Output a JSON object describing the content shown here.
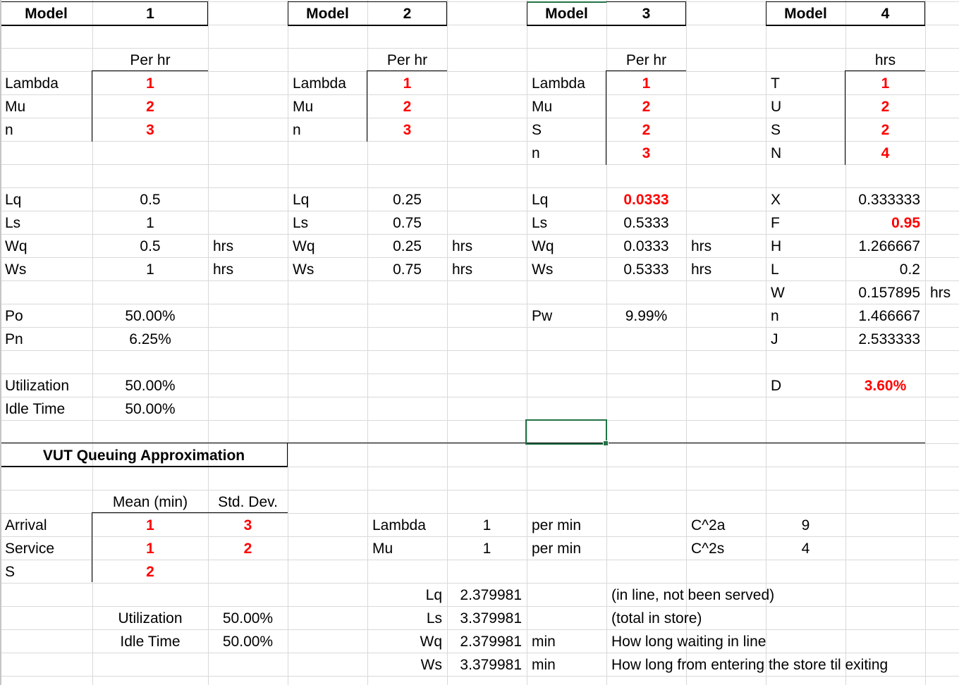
{
  "model1": {
    "header_label": "Model",
    "header_num": "1",
    "unit": "Per hr",
    "inputs": [
      {
        "label": "Lambda",
        "value": "1"
      },
      {
        "label": "Mu",
        "value": "2"
      },
      {
        "label": "n",
        "value": "3"
      }
    ],
    "outputs": [
      {
        "label": "Lq",
        "value": "0.5",
        "unit": ""
      },
      {
        "label": "Ls",
        "value": "1",
        "unit": ""
      },
      {
        "label": "Wq",
        "value": "0.5",
        "unit": "hrs"
      },
      {
        "label": "Ws",
        "value": "1",
        "unit": "hrs"
      }
    ],
    "probs": [
      {
        "label": "Po",
        "value": "50.00%"
      },
      {
        "label": "Pn",
        "value": "6.25%"
      }
    ],
    "util": [
      {
        "label": "Utilization",
        "value": "50.00%"
      },
      {
        "label": "Idle Time",
        "value": "50.00%"
      }
    ]
  },
  "model2": {
    "header_label": "Model",
    "header_num": "2",
    "unit": "Per hr",
    "inputs": [
      {
        "label": "Lambda",
        "value": "1"
      },
      {
        "label": "Mu",
        "value": "2"
      },
      {
        "label": "n",
        "value": "3"
      }
    ],
    "outputs": [
      {
        "label": "Lq",
        "value": "0.25",
        "unit": ""
      },
      {
        "label": "Ls",
        "value": "0.75",
        "unit": ""
      },
      {
        "label": "Wq",
        "value": "0.25",
        "unit": "hrs"
      },
      {
        "label": "Ws",
        "value": "0.75",
        "unit": "hrs"
      }
    ]
  },
  "model3": {
    "header_label": "Model",
    "header_num": "3",
    "unit": "Per hr",
    "inputs": [
      {
        "label": "Lambda",
        "value": "1"
      },
      {
        "label": "Mu",
        "value": "2"
      },
      {
        "label": "S",
        "value": "2"
      },
      {
        "label": "n",
        "value": "3"
      }
    ],
    "outputs": [
      {
        "label": "Lq",
        "value": "0.0333",
        "unit": ""
      },
      {
        "label": "Ls",
        "value": "0.5333",
        "unit": ""
      },
      {
        "label": "Wq",
        "value": "0.0333",
        "unit": "hrs"
      },
      {
        "label": "Ws",
        "value": "0.5333",
        "unit": "hrs"
      }
    ],
    "pw": {
      "label": "Pw",
      "value": "9.99%"
    }
  },
  "model4": {
    "header_label": "Model",
    "header_num": "4",
    "unit": "hrs",
    "inputs": [
      {
        "label": "T",
        "value": "1"
      },
      {
        "label": "U",
        "value": "2"
      },
      {
        "label": "S",
        "value": "2"
      },
      {
        "label": "N",
        "value": "4"
      }
    ],
    "outputs": [
      {
        "label": "X",
        "value": "0.333333",
        "unit": ""
      },
      {
        "label": "F",
        "value": "0.95",
        "unit": ""
      },
      {
        "label": "H",
        "value": "1.266667",
        "unit": ""
      },
      {
        "label": "L",
        "value": "0.2",
        "unit": ""
      },
      {
        "label": "W",
        "value": "0.157895",
        "unit": "hrs"
      },
      {
        "label": "n",
        "value": "1.466667",
        "unit": ""
      },
      {
        "label": "J",
        "value": "2.533333",
        "unit": ""
      }
    ],
    "d": {
      "label": "D",
      "value": "3.60%"
    }
  },
  "vut": {
    "title": "VUT Queuing Approximation",
    "col_mean": "Mean (min)",
    "col_std": "Std. Dev.",
    "rows": [
      {
        "label": "Arrival",
        "mean": "1",
        "std": "3"
      },
      {
        "label": "Service",
        "mean": "1",
        "std": "2"
      },
      {
        "label": "S",
        "mean": "2",
        "std": ""
      }
    ],
    "rates": [
      {
        "label": "Lambda",
        "value": "1",
        "unit": "per min"
      },
      {
        "label": "Mu",
        "value": "1",
        "unit": "per min"
      }
    ],
    "cv": [
      {
        "label": "C^2a",
        "value": "9"
      },
      {
        "label": "C^2s",
        "value": "4"
      }
    ],
    "util": [
      {
        "label": "Utilization",
        "value": "50.00%"
      },
      {
        "label": "Idle Time",
        "value": "50.00%"
      }
    ],
    "results": [
      {
        "label": "Lq",
        "value": "2.379981",
        "unit": "",
        "note": "(in line, not been served)"
      },
      {
        "label": "Ls",
        "value": "3.379981",
        "unit": "",
        "note": "(total in store)"
      },
      {
        "label": "Wq",
        "value": "2.379981",
        "unit": "min",
        "note": "How long waiting in line"
      },
      {
        "label": "Ws",
        "value": "3.379981",
        "unit": "min",
        "note": "How long from entering the store til exiting"
      }
    ]
  },
  "colors": {
    "input_red": "#ff0000",
    "grid": "#d9d9d9",
    "selection": "#217346"
  }
}
